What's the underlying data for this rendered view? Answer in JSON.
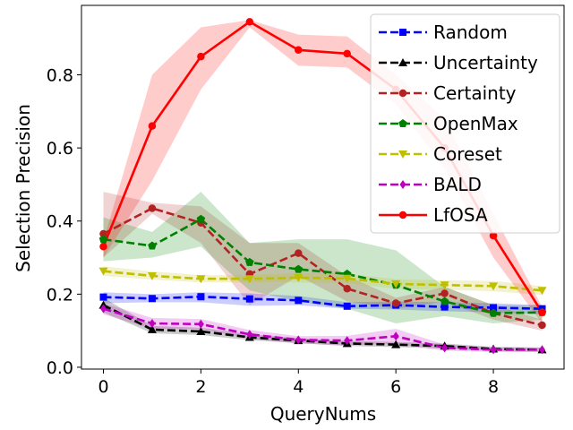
{
  "chart_data": {
    "type": "line",
    "title": "",
    "xlabel": "QueryNums",
    "ylabel": "Selection Precision",
    "xlim": [
      -0.45,
      9.45
    ],
    "ylim": [
      -0.005,
      0.99
    ],
    "xticks": [
      0,
      2,
      4,
      6,
      8
    ],
    "yticks": [
      0.0,
      0.2,
      0.4,
      0.6,
      0.8
    ],
    "ytick_labels": [
      "0.0",
      "0.2",
      "0.4",
      "0.6",
      "0.8"
    ],
    "legend_position": "top-right",
    "x": [
      0,
      1,
      2,
      3,
      4,
      5,
      6,
      7,
      8,
      9
    ],
    "series": [
      {
        "name": "Random",
        "color": "#0000ff",
        "marker": "square",
        "linestyle": "dashed",
        "values": [
          0.192,
          0.188,
          0.193,
          0.187,
          0.183,
          0.167,
          0.17,
          0.165,
          0.163,
          0.16
        ],
        "lower": [
          0.175,
          0.178,
          0.178,
          0.168,
          0.17,
          0.16,
          0.158,
          0.153,
          0.15,
          0.145
        ],
        "upper": [
          0.205,
          0.2,
          0.205,
          0.202,
          0.195,
          0.178,
          0.18,
          0.178,
          0.175,
          0.17
        ]
      },
      {
        "name": "Uncertainty",
        "color": "#000000",
        "marker": "triangle",
        "linestyle": "dashed",
        "values": [
          0.17,
          0.103,
          0.098,
          0.082,
          0.073,
          0.065,
          0.062,
          0.058,
          0.05,
          0.048
        ],
        "lower": [
          0.15,
          0.093,
          0.088,
          0.074,
          0.066,
          0.058,
          0.055,
          0.051,
          0.044,
          0.042
        ],
        "upper": [
          0.19,
          0.113,
          0.108,
          0.09,
          0.08,
          0.072,
          0.069,
          0.065,
          0.056,
          0.054
        ]
      },
      {
        "name": "Certainty",
        "color": "#b22222",
        "marker": "circle",
        "linestyle": "dashed",
        "values": [
          0.365,
          0.435,
          0.395,
          0.255,
          0.312,
          0.215,
          0.175,
          0.202,
          0.148,
          0.115
        ],
        "lower": [
          0.3,
          0.42,
          0.34,
          0.17,
          0.25,
          0.18,
          0.16,
          0.18,
          0.13,
          0.1
        ],
        "upper": [
          0.48,
          0.45,
          0.44,
          0.34,
          0.34,
          0.25,
          0.19,
          0.22,
          0.17,
          0.13
        ]
      },
      {
        "name": "OpenMax",
        "color": "#008000",
        "marker": "pentagon",
        "linestyle": "dashed",
        "values": [
          0.35,
          0.332,
          0.405,
          0.287,
          0.268,
          0.255,
          0.225,
          0.18,
          0.148,
          0.15
        ],
        "lower": [
          0.29,
          0.3,
          0.33,
          0.21,
          0.18,
          0.16,
          0.12,
          0.14,
          0.12,
          0.13
        ],
        "upper": [
          0.41,
          0.37,
          0.48,
          0.34,
          0.35,
          0.35,
          0.32,
          0.22,
          0.17,
          0.17
        ]
      },
      {
        "name": "Coreset",
        "color": "#bfbf00",
        "marker": "triangle-down",
        "linestyle": "dashed",
        "values": [
          0.263,
          0.25,
          0.242,
          0.242,
          0.245,
          0.243,
          0.228,
          0.225,
          0.222,
          0.21
        ],
        "lower": [
          0.25,
          0.24,
          0.232,
          0.232,
          0.232,
          0.23,
          0.215,
          0.212,
          0.208,
          0.198
        ],
        "upper": [
          0.276,
          0.262,
          0.252,
          0.252,
          0.258,
          0.256,
          0.241,
          0.238,
          0.236,
          0.222
        ]
      },
      {
        "name": "BALD",
        "color": "#bf00bf",
        "marker": "diamond",
        "linestyle": "dashed",
        "values": [
          0.16,
          0.12,
          0.118,
          0.09,
          0.075,
          0.073,
          0.085,
          0.053,
          0.048,
          0.048
        ],
        "lower": [
          0.145,
          0.105,
          0.105,
          0.078,
          0.065,
          0.06,
          0.065,
          0.045,
          0.042,
          0.042
        ],
        "upper": [
          0.175,
          0.135,
          0.132,
          0.102,
          0.085,
          0.086,
          0.105,
          0.062,
          0.054,
          0.054
        ]
      },
      {
        "name": "LfOSA",
        "color": "#ff0000",
        "marker": "circle",
        "linestyle": "solid",
        "values": [
          0.33,
          0.66,
          0.85,
          0.945,
          0.868,
          0.858,
          0.76,
          0.6,
          0.36,
          0.15
        ],
        "lower": [
          0.3,
          0.51,
          0.76,
          0.93,
          0.825,
          0.82,
          0.72,
          0.545,
          0.3,
          0.12
        ],
        "upper": [
          0.345,
          0.8,
          0.93,
          0.95,
          0.91,
          0.905,
          0.8,
          0.68,
          0.42,
          0.165
        ]
      }
    ]
  }
}
